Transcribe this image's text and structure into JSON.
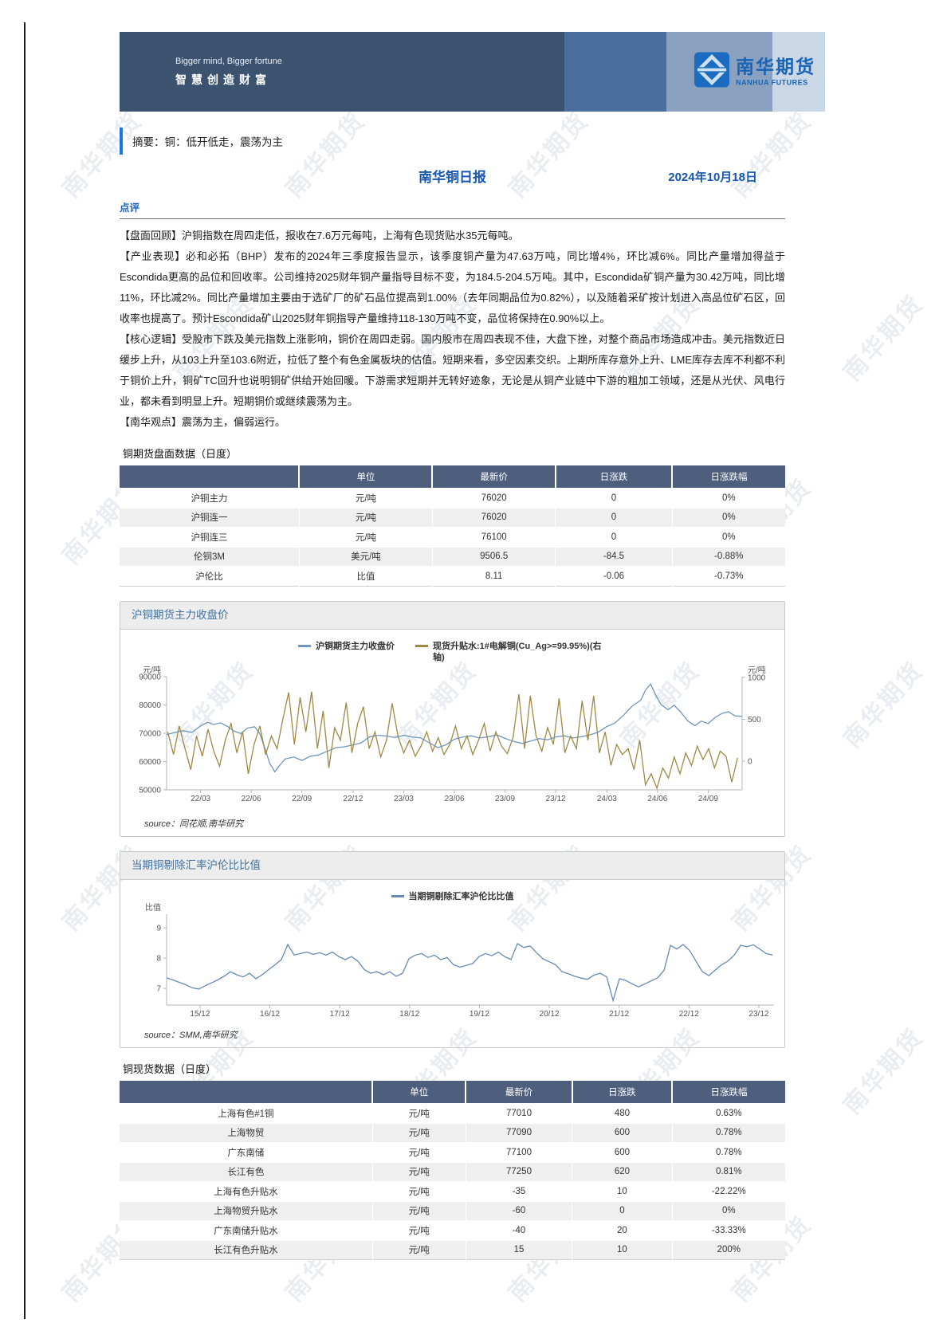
{
  "page": {
    "banner": {
      "tagline_en": "Bigger mind, Bigger fortune",
      "tagline_zh": "智慧创造财富",
      "logo_zh": "南华期货",
      "logo_en": "NANHUA FUTURES"
    },
    "summary": "摘要：铜：低开低走，震荡为主",
    "report_title": "南华铜日报",
    "report_date": "2024年10月18日",
    "comment_heading": "点评",
    "paragraphs": [
      "【盘面回顾】沪铜指数在周四走低，报收在7.6万元每吨，上海有色现货贴水35元每吨。",
      "【产业表现】必和必拓（BHP）发布的2024年三季度报告显示，该季度铜产量为47.63万吨，同比增4%，环比减6%。同比产量增加得益于Escondida更高的品位和回收率。公司维持2025财年铜产量指导目标不变，为184.5-204.5万吨。其中，Escondida矿铜产量为30.42万吨，同比增11%，环比减2%。同比产量增加主要由于选矿厂的矿石品位提高到1.00%（去年同期品位为0.82%），以及随着采矿按计划进入高品位矿石区，回收率也提高了。预计Escondida矿山2025财年铜指导产量维持118-130万吨不变，品位将保持在0.90%以上。",
      "【核心逻辑】受股市下跌及美元指数上涨影响，铜价在周四走弱。国内股市在周四表现不佳，大盘下挫，对整个商品市场造成冲击。美元指数近日缓步上升，从103上升至103.6附近，拉低了整个有色金属板块的估值。短期来看，多空因素交织。上期所库存意外上升、LME库存去库不利都不利于铜价上升，铜矿TC回升也说明铜矿供给开始回暖。下游需求短期并无转好迹象，无论是从铜产业链中下游的粗加工领域，还是从光伏、风电行业，都未看到明显上升。短期铜价或继续震荡为主。",
      "【南华观点】震荡为主，偏弱运行。"
    ],
    "watermark_text": "南华期货"
  },
  "colors": {
    "accent_blue": "#1456b0",
    "summary_bar": "#1778e2",
    "table_header": "#4e5e7d",
    "line_blue": "#7096bf",
    "line_gold": "#a08945"
  },
  "tables": [
    {
      "label": "铜期货盘面数据（日度）",
      "columns": [
        "",
        "单位",
        "最新价",
        "日涨跌",
        "日涨跌幅"
      ],
      "rows": [
        [
          "沪铜主力",
          "元/吨",
          "76020",
          "0",
          "0%"
        ],
        [
          "沪铜连一",
          "元/吨",
          "76020",
          "0",
          "0%"
        ],
        [
          "沪铜连三",
          "元/吨",
          "76100",
          "0",
          "0%"
        ],
        [
          "伦铜3M",
          "美元/吨",
          "9506.5",
          "-84.5",
          "-0.88%"
        ],
        [
          "沪伦比",
          "比值",
          "8.11",
          "-0.06",
          "-0.73%"
        ]
      ]
    },
    {
      "label": "铜现货数据（日度）",
      "columns": [
        "",
        "单位",
        "最新价",
        "日涨跌",
        "日涨跌幅"
      ],
      "rows": [
        [
          "上海有色#1铜",
          "元/吨",
          "77010",
          "480",
          "0.63%"
        ],
        [
          "上海物贸",
          "元/吨",
          "77090",
          "600",
          "0.78%"
        ],
        [
          "广东南储",
          "元/吨",
          "77100",
          "600",
          "0.78%"
        ],
        [
          "长江有色",
          "元/吨",
          "77250",
          "620",
          "0.81%"
        ],
        [
          "上海有色升贴水",
          "元/吨",
          "-35",
          "10",
          "-22.22%"
        ],
        [
          "上海物贸升贴水",
          "元/吨",
          "-60",
          "0",
          "0%"
        ],
        [
          "广东南储升贴水",
          "元/吨",
          "-40",
          "20",
          "-33.33%"
        ],
        [
          "长江有色升贴水",
          "元/吨",
          "15",
          "10",
          "200%"
        ]
      ]
    }
  ],
  "chart_data": [
    {
      "type": "line",
      "title": "沪铜期货主力收盘价",
      "ylabel_left": "元/吨",
      "ylabel_right": "元/吨",
      "ylim_left": [
        50000,
        90000
      ],
      "ylim_right": [
        -341,
        1008
      ],
      "yticks_left": [
        90000,
        80000,
        70000,
        60000,
        50000
      ],
      "yticks_right": [
        1000,
        500,
        0
      ],
      "xticks": [
        {
          "label": "22/03",
          "pos": 0.059
        },
        {
          "label": "22/06",
          "pos": 0.147
        },
        {
          "label": "22/09",
          "pos": 0.235
        },
        {
          "label": "22/12",
          "pos": 0.324
        },
        {
          "label": "23/03",
          "pos": 0.412
        },
        {
          "label": "23/06",
          "pos": 0.5
        },
        {
          "label": "23/09",
          "pos": 0.588
        },
        {
          "label": "23/12",
          "pos": 0.676
        },
        {
          "label": "24/03",
          "pos": 0.765
        },
        {
          "label": "24/06",
          "pos": 0.853
        },
        {
          "label": "24/09",
          "pos": 0.941
        }
      ],
      "legend": [
        "沪铜期货主力收盘价",
        "现货升贴水:1#电解铜(Cu_Ag>=99.95%)(右轴)"
      ],
      "series": [
        {
          "name": "沪铜期货主力收盘价",
          "axis": "left",
          "color": "#7096bf",
          "points": [
            [
              0,
              69500
            ],
            [
              0.015,
              70300
            ],
            [
              0.029,
              70900
            ],
            [
              0.044,
              70300
            ],
            [
              0.059,
              72600
            ],
            [
              0.071,
              73900
            ],
            [
              0.082,
              73100
            ],
            [
              0.094,
              73700
            ],
            [
              0.106,
              72400
            ],
            [
              0.118,
              70700
            ],
            [
              0.129,
              69900
            ],
            [
              0.141,
              71900
            ],
            [
              0.153,
              72300
            ],
            [
              0.162,
              69800
            ],
            [
              0.171,
              64500
            ],
            [
              0.179,
              59500
            ],
            [
              0.188,
              56400
            ],
            [
              0.197,
              58800
            ],
            [
              0.206,
              60900
            ],
            [
              0.221,
              61600
            ],
            [
              0.235,
              60400
            ],
            [
              0.25,
              61900
            ],
            [
              0.265,
              62400
            ],
            [
              0.279,
              63600
            ],
            [
              0.294,
              64900
            ],
            [
              0.309,
              65200
            ],
            [
              0.324,
              65900
            ],
            [
              0.338,
              66600
            ],
            [
              0.353,
              68800
            ],
            [
              0.368,
              69300
            ],
            [
              0.382,
              69000
            ],
            [
              0.397,
              68500
            ],
            [
              0.412,
              69300
            ],
            [
              0.426,
              68700
            ],
            [
              0.441,
              68400
            ],
            [
              0.456,
              66700
            ],
            [
              0.471,
              64900
            ],
            [
              0.485,
              65900
            ],
            [
              0.5,
              67900
            ],
            [
              0.515,
              68700
            ],
            [
              0.529,
              69100
            ],
            [
              0.544,
              68300
            ],
            [
              0.559,
              68800
            ],
            [
              0.574,
              69400
            ],
            [
              0.588,
              68200
            ],
            [
              0.603,
              67100
            ],
            [
              0.618,
              66400
            ],
            [
              0.632,
              67200
            ],
            [
              0.647,
              68100
            ],
            [
              0.662,
              67700
            ],
            [
              0.676,
              68700
            ],
            [
              0.691,
              69100
            ],
            [
              0.706,
              68300
            ],
            [
              0.721,
              68800
            ],
            [
              0.735,
              69400
            ],
            [
              0.75,
              70400
            ],
            [
              0.765,
              72400
            ],
            [
              0.779,
              73600
            ],
            [
              0.794,
              76400
            ],
            [
              0.809,
              79600
            ],
            [
              0.824,
              81700
            ],
            [
              0.832,
              85200
            ],
            [
              0.841,
              87400
            ],
            [
              0.85,
              83400
            ],
            [
              0.859,
              80200
            ],
            [
              0.871,
              78300
            ],
            [
              0.882,
              79900
            ],
            [
              0.894,
              77300
            ],
            [
              0.906,
              74300
            ],
            [
              0.918,
              72700
            ],
            [
              0.929,
              74300
            ],
            [
              0.941,
              73400
            ],
            [
              0.953,
              75600
            ],
            [
              0.965,
              77000
            ],
            [
              0.976,
              77600
            ],
            [
              0.988,
              76100
            ],
            [
              1,
              76000
            ]
          ]
        },
        {
          "name": "现货升贴水:1#电解铜(Cu_Ag>=99.95%)(右轴)",
          "axis": "right",
          "color": "#a08945",
          "x_start": 0.002,
          "x_step": 0.01,
          "values": [
            350,
            80,
            420,
            150,
            -100,
            300,
            60,
            380,
            120,
            -60,
            250,
            450,
            100,
            350,
            -150,
            200,
            420,
            80,
            300,
            150,
            500,
            820,
            200,
            760,
            350,
            830,
            150,
            600,
            -80,
            400,
            250,
            700,
            100,
            450,
            650,
            150,
            350,
            50,
            250,
            690,
            300,
            100,
            250,
            60,
            180,
            350,
            120,
            280,
            80,
            200,
            420,
            150,
            300,
            80,
            250,
            450,
            120,
            350,
            180,
            90,
            280,
            800,
            150,
            780,
            300,
            120,
            400,
            200,
            750,
            100,
            300,
            150,
            720,
            250,
            780,
            100,
            350,
            -50,
            200,
            80,
            150,
            -100,
            250,
            -280,
            -150,
            -320,
            -80,
            -200,
            50,
            -150,
            100,
            -50,
            180,
            20,
            150,
            -80,
            120,
            60,
            -250,
            40
          ]
        }
      ],
      "source": "source：同花顺,南华研究"
    },
    {
      "type": "line",
      "title": "当期铜剔除汇率沪伦比比值",
      "ylabel_left": "比值",
      "ylim_left": [
        6.45,
        9.45
      ],
      "yticks_left": [
        9,
        8,
        7
      ],
      "xticks": [
        {
          "label": "15/12",
          "pos": 0.055
        },
        {
          "label": "16/12",
          "pos": 0.17
        },
        {
          "label": "17/12",
          "pos": 0.285
        },
        {
          "label": "18/12",
          "pos": 0.4
        },
        {
          "label": "19/12",
          "pos": 0.515
        },
        {
          "label": "20/12",
          "pos": 0.63
        },
        {
          "label": "21/12",
          "pos": 0.745
        },
        {
          "label": "22/12",
          "pos": 0.86
        },
        {
          "label": "23/12",
          "pos": 0.975
        }
      ],
      "legend": [
        "当期铜剔除汇率沪伦比比值"
      ],
      "series": [
        {
          "name": "当期铜剔除汇率沪伦比比值",
          "axis": "left",
          "color": "#6789b4",
          "x_start": 0,
          "x_step": 0.0105,
          "values": [
            7.35,
            7.28,
            7.2,
            7.12,
            7.02,
            6.98,
            7.08,
            7.18,
            7.28,
            7.4,
            7.55,
            7.45,
            7.38,
            7.5,
            7.32,
            7.45,
            7.62,
            7.78,
            7.95,
            8.45,
            8.1,
            8.15,
            8.2,
            8.12,
            8.18,
            8.1,
            8.2,
            8.05,
            7.95,
            8.05,
            7.9,
            7.62,
            7.5,
            7.55,
            7.45,
            7.55,
            7.4,
            7.5,
            7.98,
            8.1,
            8.15,
            8.02,
            8.1,
            7.95,
            8.02,
            7.78,
            7.7,
            7.76,
            7.82,
            8.05,
            8.15,
            8.08,
            8.2,
            8.05,
            7.95,
            8.48,
            8.35,
            8.4,
            8.18,
            7.98,
            7.88,
            7.78,
            7.55,
            7.48,
            7.4,
            7.34,
            7.3,
            7.44,
            7.5,
            7.38,
            6.6,
            7.32,
            7.26,
            7.15,
            7.05,
            7.15,
            7.25,
            7.35,
            7.6,
            8.42,
            8.3,
            8.45,
            8.25,
            7.9,
            7.55,
            7.42,
            7.6,
            7.78,
            7.9,
            8.1,
            8.42,
            8.38,
            8.44,
            8.3,
            8.15,
            8.1
          ]
        }
      ],
      "source": "source：SMM,南华研究"
    }
  ]
}
